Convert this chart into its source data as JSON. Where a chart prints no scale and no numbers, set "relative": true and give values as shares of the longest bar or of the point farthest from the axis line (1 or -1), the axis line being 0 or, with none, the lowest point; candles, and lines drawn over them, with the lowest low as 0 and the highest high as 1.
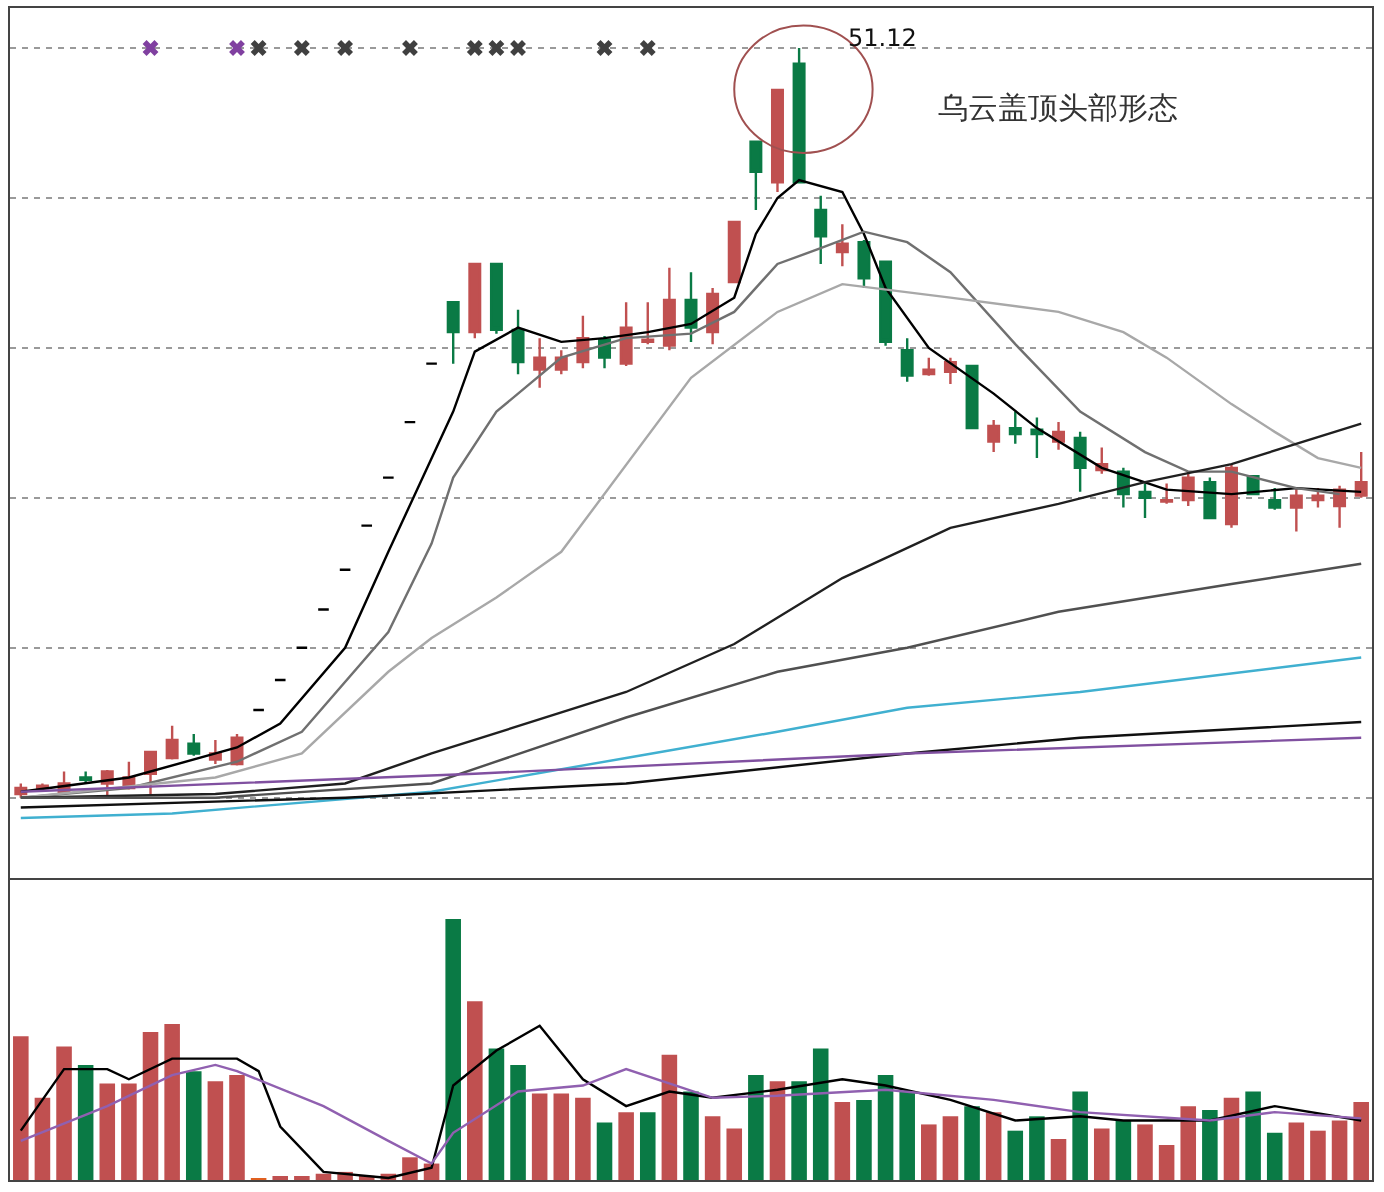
{
  "chart_data": [
    {
      "type": "candlestick",
      "title": "乌云盖顶头部形态",
      "relative": true,
      "tick_labels": false,
      "grid": "y",
      "categories": [
        null,
        null,
        null,
        null,
        null,
        null,
        null,
        null,
        null,
        null,
        null,
        null,
        null,
        null,
        null,
        null,
        null,
        null,
        null,
        null,
        null,
        null,
        null,
        null,
        null,
        null,
        null,
        null,
        null,
        null,
        null,
        null,
        null,
        null,
        null,
        null,
        null,
        null,
        null,
        null,
        null,
        null,
        null,
        null,
        null,
        null,
        null,
        null,
        null,
        null,
        null,
        null,
        null,
        null,
        null,
        null,
        null,
        null,
        null,
        null,
        null,
        null,
        null
      ],
      "ohlc": [
        [
          0.005,
          0.019,
          0,
          0.013
        ],
        [
          0.013,
          0.019,
          0.008,
          0.016
        ],
        [
          0.008,
          0.035,
          0.005,
          0.019
        ],
        [
          0.027,
          0.035,
          0.019,
          0.024
        ],
        [
          0.019,
          0.037,
          0.003,
          0.035
        ],
        [
          0.013,
          0.048,
          0.011,
          0.027
        ],
        [
          0.032,
          0.061,
          0.005,
          0.061
        ],
        [
          0.053,
          0.096,
          0.051,
          0.077
        ],
        [
          0.072,
          0.085,
          0.056,
          0.059
        ],
        [
          0.051,
          0.077,
          0.045,
          0.059
        ],
        [
          0.045,
          0.085,
          0.043,
          0.08
        ],
        [
          0.117,
          0.117,
          0.117,
          0.117
        ],
        [
          0.157,
          0.157,
          0.157,
          0.157
        ],
        [
          0.2,
          0.2,
          0.2,
          0.2
        ],
        [
          0.251,
          0.251,
          0.251,
          0.251
        ],
        [
          0.304,
          0.304,
          0.304,
          0.304
        ],
        [
          0.363,
          0.363,
          0.363,
          0.363
        ],
        [
          0.427,
          0.427,
          0.427,
          0.427
        ],
        [
          0.501,
          0.501,
          0.501,
          0.501
        ],
        [
          0.579,
          0.579,
          0.579,
          0.579
        ],
        [
          0.661,
          0.661,
          0.579,
          0.621
        ],
        [
          0.621,
          0.712,
          0.613,
          0.712
        ],
        [
          0.712,
          0.712,
          0.619,
          0.624
        ],
        [
          0.624,
          0.651,
          0.565,
          0.581
        ],
        [
          0.571,
          0.613,
          0.547,
          0.587
        ],
        [
          0.571,
          0.597,
          0.565,
          0.587
        ],
        [
          0.581,
          0.643,
          0.573,
          0.613
        ],
        [
          0.611,
          0.616,
          0.573,
          0.587
        ],
        [
          0.579,
          0.661,
          0.576,
          0.627
        ],
        [
          0.608,
          0.661,
          0.605,
          0.611
        ],
        [
          0.603,
          0.707,
          0.597,
          0.664
        ],
        [
          0.664,
          0.701,
          0.608,
          0.627
        ],
        [
          0.621,
          0.68,
          0.605,
          0.672
        ],
        [
          0.688,
          0.768,
          0.688,
          0.768
        ],
        [
          0.875,
          0.875,
          0.784,
          0.835
        ],
        [
          0.821,
          0.944,
          0.808,
          0.944
        ],
        [
          0.979,
          1,
          0.821,
          0.821
        ],
        [
          0.784,
          0.803,
          0.712,
          0.749
        ],
        [
          0.728,
          0.765,
          0.709,
          0.739
        ],
        [
          0.741,
          0.744,
          0.68,
          0.693
        ],
        [
          0.715,
          0.715,
          0.603,
          0.608
        ],
        [
          0.597,
          0.613,
          0.555,
          0.563
        ],
        [
          0.565,
          0.587,
          0.563,
          0.571
        ],
        [
          0.568,
          0.587,
          0.552,
          0.581
        ],
        [
          0.576,
          0.576,
          0.493,
          0.493
        ],
        [
          0.475,
          0.504,
          0.461,
          0.496
        ],
        [
          0.493,
          0.515,
          0.472,
          0.485
        ],
        [
          0.491,
          0.507,
          0.453,
          0.485
        ],
        [
          0.475,
          0.501,
          0.464,
          0.488
        ],
        [
          0.48,
          0.488,
          0.408,
          0.44
        ],
        [
          0.437,
          0.467,
          0.432,
          0.445
        ],
        [
          0.435,
          0.44,
          0.387,
          0.405
        ],
        [
          0.408,
          0.419,
          0.373,
          0.4
        ],
        [
          0.395,
          0.419,
          0.392,
          0.397
        ],
        [
          0.397,
          0.435,
          0.389,
          0.427
        ],
        [
          0.421,
          0.427,
          0.373,
          0.373
        ],
        [
          0.365,
          0.445,
          0.36,
          0.44
        ],
        [
          0.429,
          0.429,
          0.405,
          0.405
        ],
        [
          0.397,
          0.413,
          0.384,
          0.387
        ],
        [
          0.387,
          0.411,
          0.355,
          0.403
        ],
        [
          0.397,
          0.413,
          0.387,
          0.403
        ],
        [
          0.389,
          0.416,
          0.36,
          0.411
        ],
        [
          0.403,
          0.461,
          0.4,
          0.421
        ]
      ],
      "colors": [
        "#c05050",
        "#c05050",
        "#c05050",
        "#0a7a45",
        "#c05050",
        "#c05050",
        "#c05050",
        "#c05050",
        "#0a7a45",
        "#c05050",
        "#c05050",
        "#000000",
        "#000000",
        "#000000",
        "#000000",
        "#000000",
        "#000000",
        "#000000",
        "#000000",
        "#000000",
        "#0a7a45",
        "#c05050",
        "#0a7a45",
        "#0a7a45",
        "#c05050",
        "#c05050",
        "#c05050",
        "#0a7a45",
        "#c05050",
        "#c05050",
        "#c05050",
        "#0a7a45",
        "#c05050",
        "#c05050",
        "#0a7a45",
        "#c05050",
        "#0a7a45",
        "#0a7a45",
        "#c05050",
        "#0a7a45",
        "#0a7a45",
        "#0a7a45",
        "#c05050",
        "#c05050",
        "#0a7a45",
        "#c05050",
        "#0a7a45",
        "#0a7a45",
        "#c05050",
        "#0a7a45",
        "#c05050",
        "#0a7a45",
        "#0a7a45",
        "#c05050",
        "#c05050",
        "#0a7a45",
        "#c05050",
        "#0a7a45",
        "#0a7a45",
        "#c05050",
        "#c05050",
        "#c05050",
        "#c05050"
      ],
      "series": [
        {
          "type": "line",
          "color": "#000000",
          "values": [
            0.008,
            null,
            null,
            null,
            null,
            0.027,
            null,
            null,
            null,
            null,
            0.067,
            null,
            0.099,
            null,
            null,
            0.2,
            null,
            0.328,
            null,
            null,
            0.515,
            0.595,
            null,
            0.627,
            null,
            0.608,
            null,
            0.613,
            null,
            0.621,
            null,
            0.632,
            null,
            0.667,
            0.752,
            0.8,
            0.824,
            null,
            0.808,
            0.752,
            0.68,
            null,
            0.6,
            null,
            null,
            0.539,
            null,
            0.493,
            null,
            null,
            0.44,
            null,
            null,
            0.411,
            null,
            null,
            0.405,
            null,
            null,
            0.413,
            null,
            null,
            0.408
          ]
        },
        {
          "type": "line",
          "color": "#707070",
          "values": [
            0,
            null,
            null,
            null,
            null,
            0.013,
            null,
            null,
            null,
            null,
            0.048,
            null,
            null,
            0.088,
            null,
            null,
            null,
            0.221,
            null,
            0.339,
            0.427,
            null,
            0.515,
            null,
            null,
            0.587,
            null,
            null,
            0.613,
            null,
            null,
            0.619,
            null,
            0.648,
            null,
            0.712,
            null,
            0.733,
            null,
            0.755,
            null,
            0.741,
            null,
            0.701,
            null,
            null,
            0.605,
            null,
            null,
            0.515,
            null,
            null,
            0.461,
            null,
            0.435,
            null,
            0.435,
            null,
            null,
            0.413,
            null,
            0.405,
            null
          ]
        },
        {
          "type": "line",
          "color": "#a8a8a8",
          "values": [
            0,
            null,
            null,
            null,
            null,
            null,
            null,
            null,
            null,
            0.027,
            null,
            null,
            null,
            0.059,
            null,
            null,
            null,
            0.168,
            null,
            0.213,
            null,
            null,
            0.267,
            null,
            null,
            0.328,
            null,
            null,
            null,
            null,
            null,
            0.56,
            null,
            null,
            null,
            0.648,
            null,
            null,
            0.685,
            null,
            null,
            null,
            null,
            0.667,
            null,
            null,
            null,
            null,
            0.648,
            null,
            null,
            0.621,
            null,
            0.587,
            null,
            null,
            0.525,
            null,
            0.488,
            null,
            0.453,
            null,
            0.44
          ]
        },
        {
          "type": "line",
          "color": "#202020",
          "values": [
            0,
            null,
            null,
            null,
            null,
            null,
            null,
            null,
            null,
            0.005,
            null,
            null,
            null,
            null,
            null,
            0.019,
            null,
            null,
            null,
            0.059,
            null,
            null,
            null,
            null,
            null,
            null,
            null,
            null,
            0.141,
            null,
            null,
            null,
            null,
            0.205,
            null,
            null,
            null,
            null,
            0.293,
            null,
            null,
            null,
            null,
            0.36,
            null,
            null,
            null,
            null,
            0.392,
            null,
            null,
            null,
            0.421,
            null,
            null,
            null,
            0.445,
            null,
            null,
            null,
            null,
            null,
            0.499
          ]
        },
        {
          "type": "line",
          "color": "#505050",
          "values": [
            0,
            null,
            null,
            null,
            null,
            null,
            null,
            null,
            null,
            0,
            null,
            null,
            null,
            null,
            null,
            null,
            null,
            null,
            null,
            0.019,
            null,
            null,
            null,
            null,
            null,
            null,
            null,
            null,
            0.107,
            null,
            null,
            null,
            null,
            null,
            null,
            0.168,
            null,
            null,
            null,
            null,
            null,
            0.2,
            null,
            null,
            null,
            null,
            null,
            null,
            0.248,
            null,
            null,
            null,
            null,
            null,
            null,
            null,
            0.285,
            null,
            null,
            null,
            null,
            null,
            0.312
          ]
        },
        {
          "type": "line",
          "color": "#40b0d0",
          "values": [
            -0.027,
            null,
            null,
            null,
            null,
            null,
            null,
            -0.021,
            null,
            null,
            null,
            null,
            null,
            null,
            null,
            null,
            null,
            null,
            null,
            0.008,
            null,
            null,
            null,
            null,
            null,
            null,
            null,
            null,
            0.053,
            null,
            null,
            null,
            null,
            null,
            null,
            0.088,
            null,
            null,
            null,
            null,
            null,
            0.12,
            null,
            null,
            null,
            null,
            null,
            null,
            null,
            0.141,
            null,
            null,
            null,
            null,
            null,
            null,
            null,
            null,
            null,
            null,
            null,
            null,
            0.187
          ]
        },
        {
          "type": "line",
          "color": "#101010",
          "values": [
            -0.013,
            null,
            null,
            null,
            null,
            null,
            null,
            null,
            null,
            null,
            null,
            null,
            null,
            null,
            null,
            0,
            null,
            null,
            null,
            null,
            null,
            null,
            null,
            null,
            null,
            null,
            null,
            null,
            0.019,
            null,
            null,
            null,
            null,
            null,
            null,
            null,
            null,
            null,
            null,
            null,
            null,
            0.059,
            null,
            null,
            null,
            null,
            null,
            null,
            null,
            0.08,
            null,
            null,
            null,
            null,
            null,
            null,
            null,
            null,
            null,
            null,
            null,
            null,
            0.101
          ]
        },
        {
          "type": "line",
          "color": "#8050a0",
          "values": [
            0.008,
            null,
            null,
            null,
            null,
            null,
            null,
            null,
            null,
            null,
            null,
            null,
            null,
            null,
            null,
            null,
            null,
            null,
            null,
            null,
            null,
            0.032,
            null,
            null,
            null,
            null,
            null,
            null,
            null,
            null,
            null,
            null,
            null,
            null,
            null,
            null,
            null,
            null,
            null,
            null,
            null,
            0.059,
            null,
            null,
            null,
            null,
            null,
            null,
            null,
            null,
            null,
            null,
            null,
            null,
            null,
            null,
            null,
            null,
            null,
            null,
            null,
            null,
            0.08
          ]
        },
        {
          "type": "scatter",
          "marker": "cross",
          "color": "#8040a0",
          "values": [
            null,
            null,
            null,
            null,
            null,
            null,
            1,
            null,
            null,
            null,
            1,
            null,
            null,
            null,
            null,
            null,
            null,
            null,
            null,
            null,
            null,
            null,
            null,
            null,
            null,
            null,
            null,
            null,
            null,
            null,
            null,
            null,
            null,
            null,
            null,
            null,
            null,
            null,
            null,
            null,
            null,
            null,
            null,
            null,
            null,
            null,
            null,
            null,
            null,
            null,
            null,
            null,
            null,
            null,
            null,
            null,
            null,
            null,
            null,
            null,
            null,
            null,
            null
          ]
        },
        {
          "type": "scatter",
          "marker": "cross",
          "color": "#404040",
          "values": [
            null,
            null,
            null,
            null,
            null,
            null,
            null,
            null,
            null,
            null,
            null,
            1,
            null,
            1,
            null,
            1,
            null,
            null,
            1,
            null,
            null,
            1,
            1,
            1,
            null,
            null,
            null,
            1,
            null,
            1,
            null,
            null,
            null,
            null,
            null,
            null,
            null,
            null,
            null,
            null,
            null,
            null,
            null,
            null,
            null,
            null,
            null,
            null,
            null,
            null,
            null,
            null,
            null,
            null,
            null,
            null,
            null,
            null,
            null,
            null,
            null,
            null,
            null
          ]
        }
      ],
      "annotations": [
        "51.12"
      ]
    },
    {
      "type": "bar",
      "relative": true,
      "tick_labels": false,
      "categories": [
        null,
        null,
        null,
        null,
        null,
        null,
        null,
        null,
        null,
        null,
        null,
        null,
        null,
        null,
        null,
        null,
        null,
        null,
        null,
        null,
        null,
        null,
        null,
        null,
        null,
        null,
        null,
        null,
        null,
        null,
        null,
        null,
        null,
        null,
        null,
        null,
        null,
        null,
        null,
        null,
        null,
        null,
        null,
        null,
        null,
        null,
        null,
        null,
        null,
        null,
        null,
        null,
        null,
        null,
        null,
        null,
        null,
        null,
        null,
        null,
        null,
        null,
        null
      ],
      "values": [
        0.551,
        0.315,
        0.512,
        0.441,
        0.37,
        0.37,
        0.567,
        0.598,
        0.417,
        0.378,
        0.402,
        0.003,
        0.008,
        0.008,
        0.024,
        0.031,
        0.016,
        0.024,
        0.087,
        0.063,
        1,
        0.685,
        0.504,
        0.441,
        0.331,
        0.331,
        0.315,
        0.22,
        0.26,
        0.26,
        0.48,
        0.339,
        0.244,
        0.197,
        0.402,
        0.378,
        0.378,
        0.504,
        0.299,
        0.307,
        0.402,
        0.339,
        0.213,
        0.244,
        0.283,
        0.26,
        0.189,
        0.244,
        0.157,
        0.339,
        0.197,
        0.228,
        0.213,
        0.134,
        0.283,
        0.268,
        0.315,
        0.339,
        0.181,
        0.22,
        0.189,
        0.228,
        0.299
      ],
      "colors": [
        "#c05050",
        "#c05050",
        "#c05050",
        "#0a7a45",
        "#c05050",
        "#c05050",
        "#c05050",
        "#c05050",
        "#0a7a45",
        "#c05050",
        "#c05050",
        "#e06020",
        "#c05050",
        "#c05050",
        "#c05050",
        "#c05050",
        "#c05050",
        "#c05050",
        "#c05050",
        "#c05050",
        "#0a7a45",
        "#c05050",
        "#0a7a45",
        "#0a7a45",
        "#c05050",
        "#c05050",
        "#c05050",
        "#0a7a45",
        "#c05050",
        "#0a7a45",
        "#c05050",
        "#0a7a45",
        "#c05050",
        "#c05050",
        "#0a7a45",
        "#c05050",
        "#0a7a45",
        "#0a7a45",
        "#c05050",
        "#0a7a45",
        "#0a7a45",
        "#0a7a45",
        "#c05050",
        "#c05050",
        "#0a7a45",
        "#c05050",
        "#0a7a45",
        "#0a7a45",
        "#c05050",
        "#0a7a45",
        "#c05050",
        "#0a7a45",
        "#c05050",
        "#c05050",
        "#c05050",
        "#0a7a45",
        "#c05050",
        "#0a7a45",
        "#0a7a45",
        "#c05050",
        "#c05050",
        "#c05050",
        "#c05050"
      ],
      "series": [
        {
          "type": "line",
          "color": "#000000",
          "values": [
            0.189,
            null,
            0.425,
            null,
            0.425,
            0.386,
            null,
            0.465,
            null,
            null,
            0.465,
            0.417,
            0.205,
            null,
            0.031,
            null,
            null,
            0.008,
            null,
            0.047,
            0.362,
            null,
            0.496,
            null,
            0.591,
            null,
            0.386,
            null,
            0.283,
            null,
            0.339,
            null,
            0.315,
            null,
            null,
            0.346,
            null,
            null,
            0.386,
            null,
            0.362,
            null,
            null,
            0.307,
            null,
            null,
            0.228,
            null,
            null,
            0.244,
            null,
            0.228,
            null,
            null,
            null,
            0.228,
            null,
            null,
            0.283,
            null,
            null,
            null,
            0.228
          ]
        },
        {
          "type": "line",
          "color": "#9060b0",
          "values": [
            0.15,
            null,
            null,
            null,
            0.283,
            null,
            null,
            0.402,
            null,
            0.441,
            0.417,
            null,
            null,
            null,
            0.283,
            null,
            null,
            0.15,
            null,
            0.063,
            0.181,
            null,
            null,
            0.339,
            null,
            null,
            0.362,
            null,
            0.425,
            null,
            null,
            null,
            0.315,
            null,
            null,
            0.323,
            null,
            null,
            null,
            null,
            0.346,
            null,
            null,
            null,
            null,
            0.307,
            null,
            null,
            null,
            0.26,
            null,
            null,
            null,
            null,
            null,
            0.228,
            null,
            null,
            0.26,
            null,
            null,
            null,
            0.236
          ]
        }
      ]
    }
  ]
}
